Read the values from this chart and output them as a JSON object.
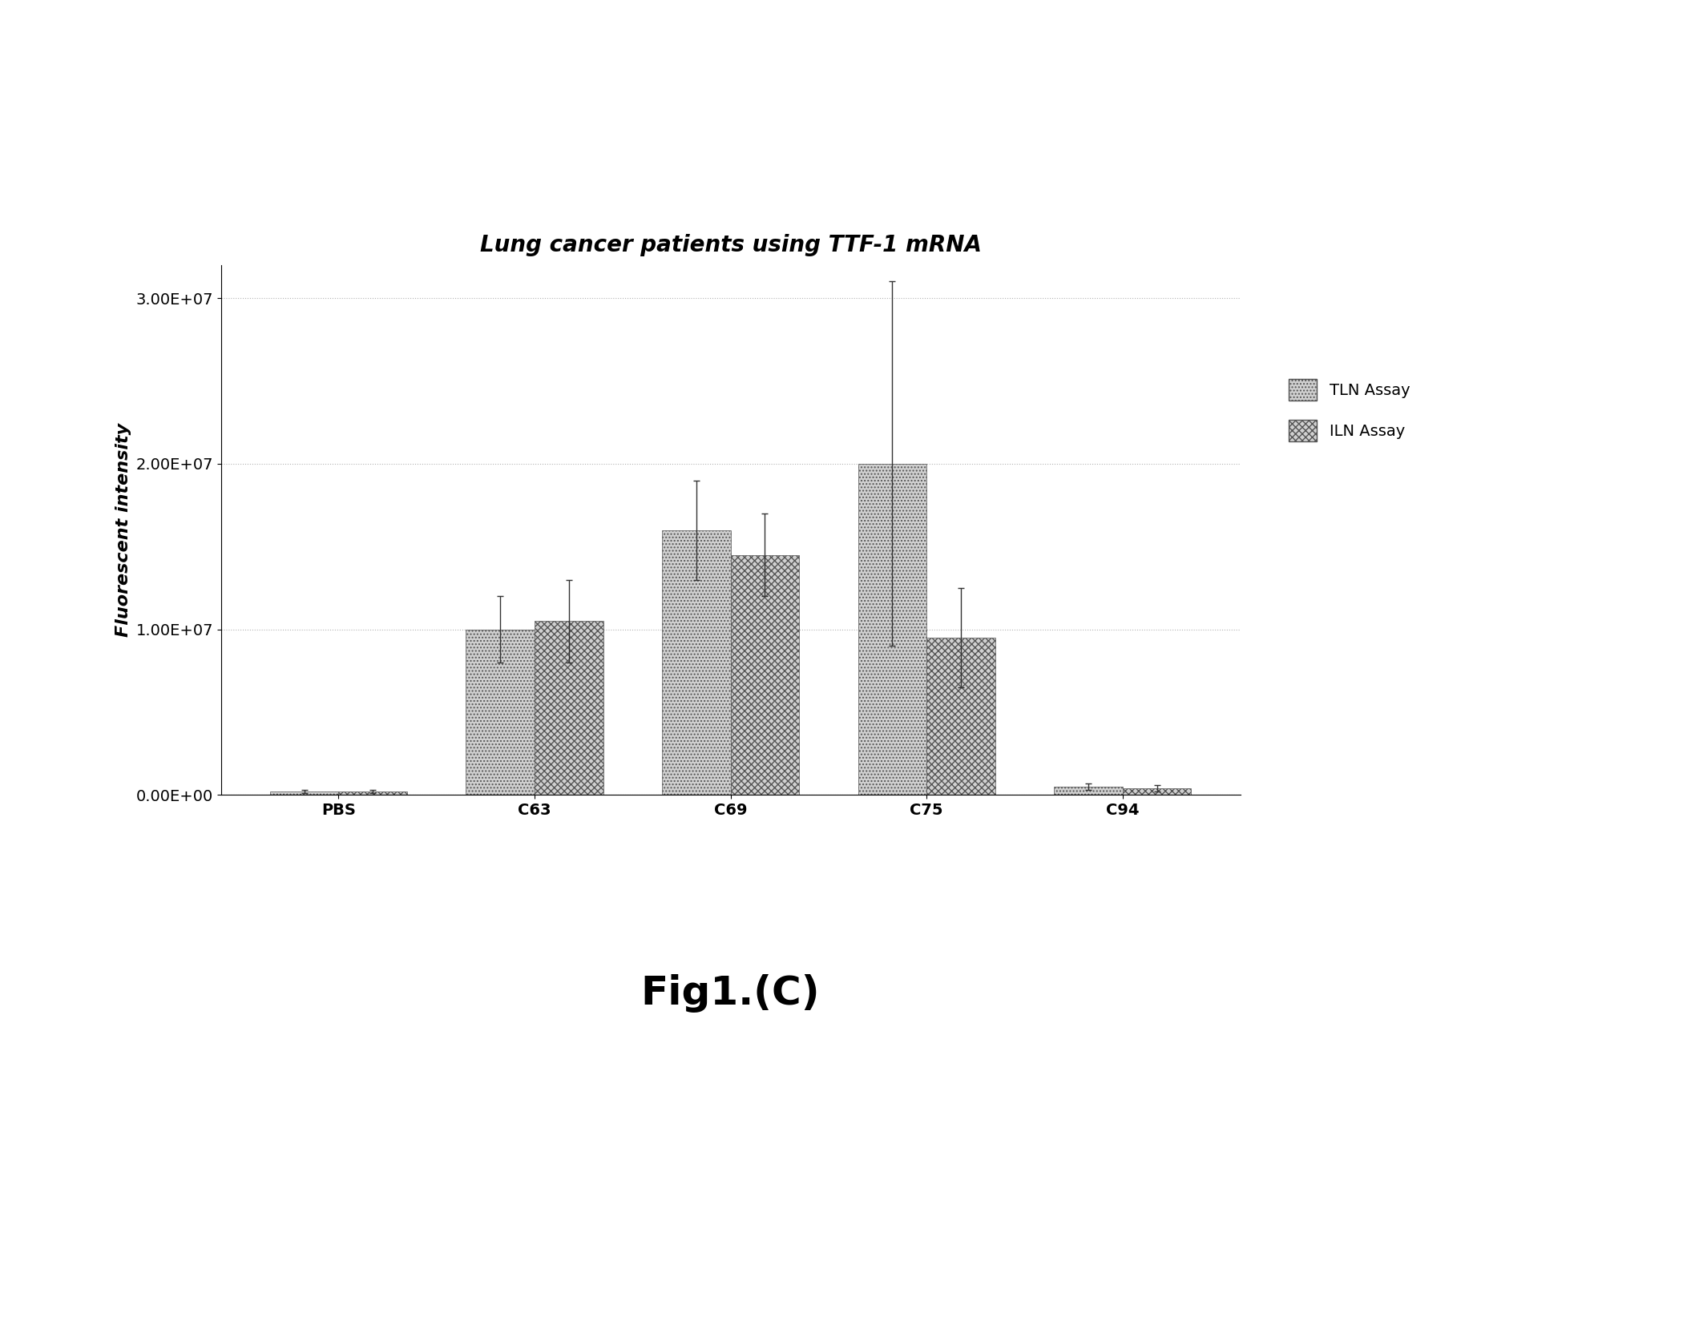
{
  "title": "Lung cancer patients using TTF-1 mRNA",
  "ylabel": "Fluorescent intensity",
  "categories": [
    "PBS",
    "C63",
    "C69",
    "C75",
    "C94"
  ],
  "tln_values": [
    200000.0,
    10000000.0,
    16000000.0,
    20000000.0,
    500000.0
  ],
  "iln_values": [
    200000.0,
    10500000.0,
    14500000.0,
    9500000.0,
    400000.0
  ],
  "tln_errors": [
    100000.0,
    2000000.0,
    3000000.0,
    11000000.0,
    200000.0
  ],
  "iln_errors": [
    100000.0,
    2500000.0,
    2500000.0,
    3000000.0,
    200000.0
  ],
  "ylim": [
    0,
    32000000.0
  ],
  "yticks": [
    0,
    10000000.0,
    20000000.0,
    30000000.0
  ],
  "ytick_labels": [
    "0.00E+00",
    "1.00E+07",
    "2.00E+07",
    "3.00E+07"
  ],
  "legend_labels": [
    "TLN Assay",
    "ILN Assay"
  ],
  "background_color": "#ffffff",
  "bar_width": 0.35,
  "title_fontsize": 20,
  "axis_fontsize": 16,
  "tick_fontsize": 14,
  "legend_fontsize": 14,
  "fig_caption": "Fig1.(C)",
  "caption_fontsize": 36
}
